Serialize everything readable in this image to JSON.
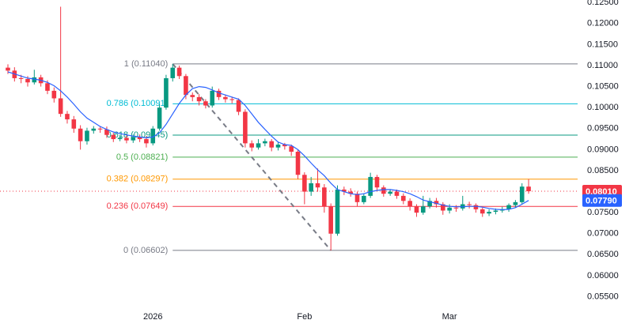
{
  "chart_data": {
    "type": "candlestick",
    "open": [
      0.1095,
      0.1088,
      0.107,
      0.1068,
      0.106,
      0.1072,
      0.1058,
      0.104,
      0.1022,
      0.0985,
      0.0972,
      0.095,
      0.092,
      0.0945,
      0.095,
      0.0948,
      0.0935,
      0.0925,
      0.0928,
      0.0922,
      0.093,
      0.0925,
      0.0915,
      0.095,
      0.1,
      0.107,
      0.1095,
      0.1075,
      0.103,
      0.1025,
      0.1015,
      0.1005,
      0.104,
      0.1025,
      0.102,
      0.1018,
      0.099,
      0.0915,
      0.0905,
      0.0915,
      0.092,
      0.0905,
      0.0912,
      0.0908,
      0.0895,
      0.084,
      0.08,
      0.082,
      0.081,
      0.0765,
      0.07,
      0.0805,
      0.08,
      0.0795,
      0.0775,
      0.079,
      0.0835,
      0.081,
      0.0795,
      0.08,
      0.079,
      0.0778,
      0.0765,
      0.075,
      0.0765,
      0.0778,
      0.077,
      0.0755,
      0.0762,
      0.076,
      0.077,
      0.0768,
      0.0758,
      0.0748,
      0.0752,
      0.0755,
      0.0758,
      0.0768,
      0.0775,
      0.0812
    ],
    "high": [
      0.1103,
      0.1096,
      0.1078,
      0.1075,
      0.109,
      0.1078,
      0.1065,
      0.1048,
      0.124,
      0.0992,
      0.098,
      0.0958,
      0.0952,
      0.0956,
      0.0956,
      0.0955,
      0.094,
      0.0935,
      0.0934,
      0.0936,
      0.0936,
      0.0932,
      0.0956,
      0.1008,
      0.1078,
      0.1104,
      0.11,
      0.108,
      0.1036,
      0.1032,
      0.102,
      0.105,
      0.1045,
      0.103,
      0.1026,
      0.1022,
      0.0996,
      0.0922,
      0.0925,
      0.0926,
      0.0925,
      0.0918,
      0.0916,
      0.0912,
      0.09,
      0.0846,
      0.0835,
      0.0855,
      0.0818,
      0.0772,
      0.0815,
      0.0812,
      0.0808,
      0.08,
      0.0796,
      0.0845,
      0.084,
      0.0815,
      0.0806,
      0.0805,
      0.0796,
      0.0784,
      0.077,
      0.079,
      0.0785,
      0.0785,
      0.0775,
      0.077,
      0.0768,
      0.079,
      0.0776,
      0.0772,
      0.0762,
      0.0758,
      0.076,
      0.0764,
      0.0772,
      0.078,
      0.082,
      0.083
    ],
    "low": [
      0.108,
      0.1062,
      0.1058,
      0.105,
      0.1055,
      0.105,
      0.1032,
      0.1012,
      0.0978,
      0.0962,
      0.094,
      0.09,
      0.0912,
      0.0938,
      0.094,
      0.0928,
      0.0918,
      0.092,
      0.0915,
      0.0916,
      0.0918,
      0.0905,
      0.091,
      0.0945,
      0.0995,
      0.1062,
      0.1068,
      0.102,
      0.1015,
      0.1005,
      0.0998,
      0.1,
      0.1018,
      0.1012,
      0.101,
      0.0982,
      0.0905,
      0.0896,
      0.09,
      0.0908,
      0.0896,
      0.0898,
      0.09,
      0.0885,
      0.083,
      0.077,
      0.079,
      0.08,
      0.075,
      0.066,
      0.0695,
      0.0792,
      0.0788,
      0.0765,
      0.077,
      0.0785,
      0.0802,
      0.0788,
      0.079,
      0.0783,
      0.077,
      0.0755,
      0.074,
      0.0745,
      0.076,
      0.0762,
      0.0745,
      0.0748,
      0.0752,
      0.0755,
      0.076,
      0.075,
      0.074,
      0.0742,
      0.0746,
      0.075,
      0.0752,
      0.0762,
      0.077,
      0.0795
    ],
    "close": [
      0.1088,
      0.107,
      0.1068,
      0.106,
      0.1072,
      0.1058,
      0.104,
      0.1022,
      0.0985,
      0.0972,
      0.095,
      0.092,
      0.0945,
      0.095,
      0.0948,
      0.0935,
      0.0925,
      0.0928,
      0.0922,
      0.093,
      0.0925,
      0.0915,
      0.095,
      0.1,
      0.107,
      0.1095,
      0.1075,
      0.103,
      0.1025,
      0.1015,
      0.1005,
      0.104,
      0.1025,
      0.102,
      0.1018,
      0.099,
      0.0915,
      0.0905,
      0.0915,
      0.092,
      0.0905,
      0.0912,
      0.0908,
      0.0895,
      0.084,
      0.08,
      0.082,
      0.081,
      0.0765,
      0.07,
      0.0805,
      0.08,
      0.0795,
      0.0775,
      0.079,
      0.0835,
      0.081,
      0.0795,
      0.08,
      0.079,
      0.0778,
      0.0765,
      0.075,
      0.0765,
      0.0778,
      0.077,
      0.0755,
      0.0762,
      0.076,
      0.077,
      0.0768,
      0.0758,
      0.0748,
      0.0752,
      0.0755,
      0.0758,
      0.0768,
      0.0775,
      0.0812,
      0.0801
    ],
    "ma": [
      0.1085,
      0.108,
      0.1075,
      0.107,
      0.1068,
      0.1065,
      0.106,
      0.1052,
      0.104,
      0.1025,
      0.1008,
      0.099,
      0.0975,
      0.0965,
      0.0955,
      0.0948,
      0.0942,
      0.0938,
      0.0935,
      0.0932,
      0.093,
      0.0928,
      0.093,
      0.094,
      0.096,
      0.0985,
      0.101,
      0.103,
      0.1045,
      0.105,
      0.1048,
      0.1042,
      0.1035,
      0.103,
      0.1025,
      0.102,
      0.1005,
      0.0985,
      0.0965,
      0.0948,
      0.0932,
      0.0918,
      0.0912,
      0.091,
      0.09,
      0.0885,
      0.0868,
      0.0852,
      0.0838,
      0.082,
      0.0805,
      0.08,
      0.0795,
      0.0793,
      0.0795,
      0.08,
      0.0803,
      0.0805,
      0.0805,
      0.0803,
      0.08,
      0.0795,
      0.0788,
      0.078,
      0.0776,
      0.0772,
      0.0768,
      0.0765,
      0.0764,
      0.0764,
      0.0765,
      0.0765,
      0.0763,
      0.076,
      0.0758,
      0.0757,
      0.0758,
      0.0762,
      0.077,
      0.0779
    ],
    "up_color": "#089981",
    "down_color": "#f23645",
    "ma_color": "#2962ff",
    "fib_levels": [
      {
        "price": 0.1104,
        "label": "1 (0.11040)",
        "color": "#787b86"
      },
      {
        "price": 0.10091,
        "label": "0.786 (0.10091)",
        "color": "#00bcd4"
      },
      {
        "price": 0.09345,
        "label": "0.618 (0.09345)",
        "color": "#089981"
      },
      {
        "price": 0.08821,
        "label": "0.5 (0.08821)",
        "color": "#4caf50"
      },
      {
        "price": 0.08297,
        "label": "0.382 (0.08297)",
        "color": "#ff9800"
      },
      {
        "price": 0.07649,
        "label": "0.236 (0.07649)",
        "color": "#f23645"
      },
      {
        "price": 0.06602,
        "label": "0 (0.06602)",
        "color": "#787b86"
      }
    ],
    "price_tags": [
      {
        "value": 0.0801,
        "label": "0.08010",
        "color": "#f23645"
      },
      {
        "value": 0.0779,
        "label": "0.07790",
        "color": "#2962ff"
      }
    ],
    "x_labels": [
      {
        "label": "2026",
        "candle": 22
      },
      {
        "label": "Feb",
        "candle": 45
      },
      {
        "label": "Mar",
        "candle": 67
      }
    ],
    "ylim": [
      0.0504,
      0.1256
    ],
    "yticks": [
      {
        "value": 0.125,
        "label": "0.12500"
      },
      {
        "value": 0.12,
        "label": "0.12000"
      },
      {
        "value": 0.115,
        "label": "0.11500"
      },
      {
        "value": 0.11,
        "label": "0.11000"
      },
      {
        "value": 0.105,
        "label": "0.10500"
      },
      {
        "value": 0.1,
        "label": "0.10000"
      },
      {
        "value": 0.095,
        "label": "0.09500"
      },
      {
        "value": 0.09,
        "label": "0.09000"
      },
      {
        "value": 0.085,
        "label": "0.08500"
      },
      {
        "value": 0.08,
        "label": "0.08000"
      },
      {
        "value": 0.075,
        "label": "0.07500"
      },
      {
        "value": 0.07,
        "label": "0.07000"
      },
      {
        "value": 0.065,
        "label": "0.06500"
      },
      {
        "value": 0.06,
        "label": "0.06000"
      },
      {
        "value": 0.055,
        "label": "0.05500"
      }
    ]
  }
}
